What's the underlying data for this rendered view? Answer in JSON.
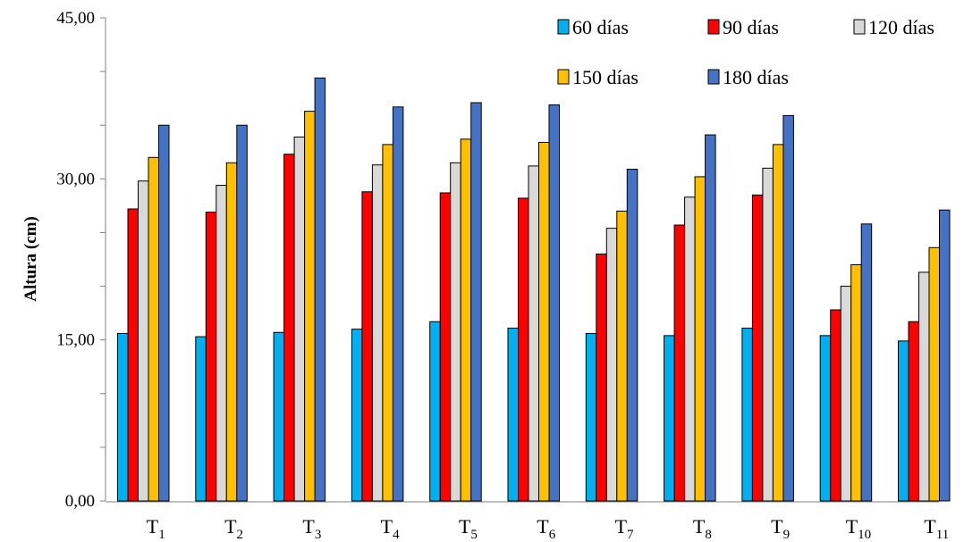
{
  "chart_data": {
    "type": "bar",
    "title": "",
    "xlabel": "",
    "ylabel": "Altura (cm)",
    "ylim": [
      0,
      45
    ],
    "yticks": [
      {
        "value": 0,
        "label": "0,00"
      },
      {
        "value": 15,
        "label": "15,00"
      },
      {
        "value": 30,
        "label": "30,00"
      },
      {
        "value": 45,
        "label": "45,00"
      }
    ],
    "grid": false,
    "legend_position": "top-right",
    "categories": [
      {
        "base": "T",
        "sub": "1"
      },
      {
        "base": "T",
        "sub": "2"
      },
      {
        "base": "T",
        "sub": "3"
      },
      {
        "base": "T",
        "sub": "4"
      },
      {
        "base": "T",
        "sub": "5"
      },
      {
        "base": "T",
        "sub": "6"
      },
      {
        "base": "T",
        "sub": "7"
      },
      {
        "base": "T",
        "sub": "8"
      },
      {
        "base": "T",
        "sub": "9"
      },
      {
        "base": "T",
        "sub": "10"
      },
      {
        "base": "T",
        "sub": "11"
      }
    ],
    "series": [
      {
        "name": "60 días",
        "color": "#00B0F0",
        "values": [
          15.6,
          15.3,
          15.7,
          16.0,
          16.7,
          16.1,
          15.6,
          15.4,
          16.1,
          15.4,
          14.9
        ]
      },
      {
        "name": "90 días",
        "color": "#FF0000",
        "values": [
          27.2,
          26.9,
          32.3,
          28.8,
          28.7,
          28.2,
          23.0,
          25.7,
          28.5,
          17.8,
          16.7
        ]
      },
      {
        "name": "120 días",
        "color": "#D9D9D9",
        "values": [
          29.8,
          29.4,
          33.9,
          31.3,
          31.5,
          31.2,
          25.4,
          28.3,
          31.0,
          20.0,
          21.3
        ]
      },
      {
        "name": "150 días",
        "color": "#FFC000",
        "values": [
          32.0,
          31.5,
          36.3,
          33.2,
          33.7,
          33.4,
          27.0,
          30.2,
          33.2,
          22.0,
          23.6
        ]
      },
      {
        "name": "180 días",
        "color": "#4472C4",
        "values": [
          35.0,
          35.0,
          39.4,
          36.7,
          37.1,
          36.9,
          30.9,
          34.1,
          35.9,
          25.8,
          27.1
        ]
      }
    ]
  }
}
